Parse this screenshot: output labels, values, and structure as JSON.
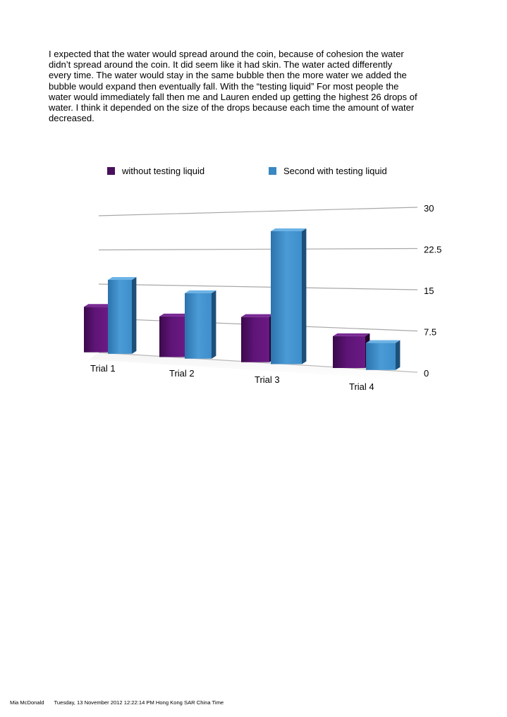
{
  "document": {
    "paragraph_lines": [
      "I expected that the water would spread around the coin, because of cohesion the water",
      "didn’t spread around the coin.  It did seem like it had skin.  The water acted differently",
      "every time.  The water would stay in the same bubble then the more water we added the",
      "bubble would expand then eventually fall.  With the “testing liquid”  For most people the",
      "water would immediately fall then me and Lauren ended up getting the highest 26 drops of",
      "water.  I think it depended on the size of the drops because each time the amount of water",
      "decreased."
    ]
  },
  "chart_data": {
    "type": "bar",
    "categories": [
      "Trial 1",
      "Trial 2",
      "Trial 3",
      "Trial 4"
    ],
    "series": [
      {
        "name": "without testing liquid",
        "values": [
          10,
          8.5,
          9,
          6
        ],
        "color": "#4a0f5c"
      },
      {
        "name": "Second with testing liquid",
        "values": [
          16,
          13.5,
          26,
          5
        ],
        "color": "#3a88c2"
      }
    ],
    "y_ticks": [
      "30",
      "22.5",
      "15",
      "7.5",
      "0"
    ],
    "ylim": [
      0,
      30
    ],
    "legend": "top",
    "grid": true
  },
  "footer": {
    "author": "Mia McDonald",
    "timestamp": "Tuesday, 13 November 2012 12:22:14 PM Hong Kong SAR China Time"
  }
}
